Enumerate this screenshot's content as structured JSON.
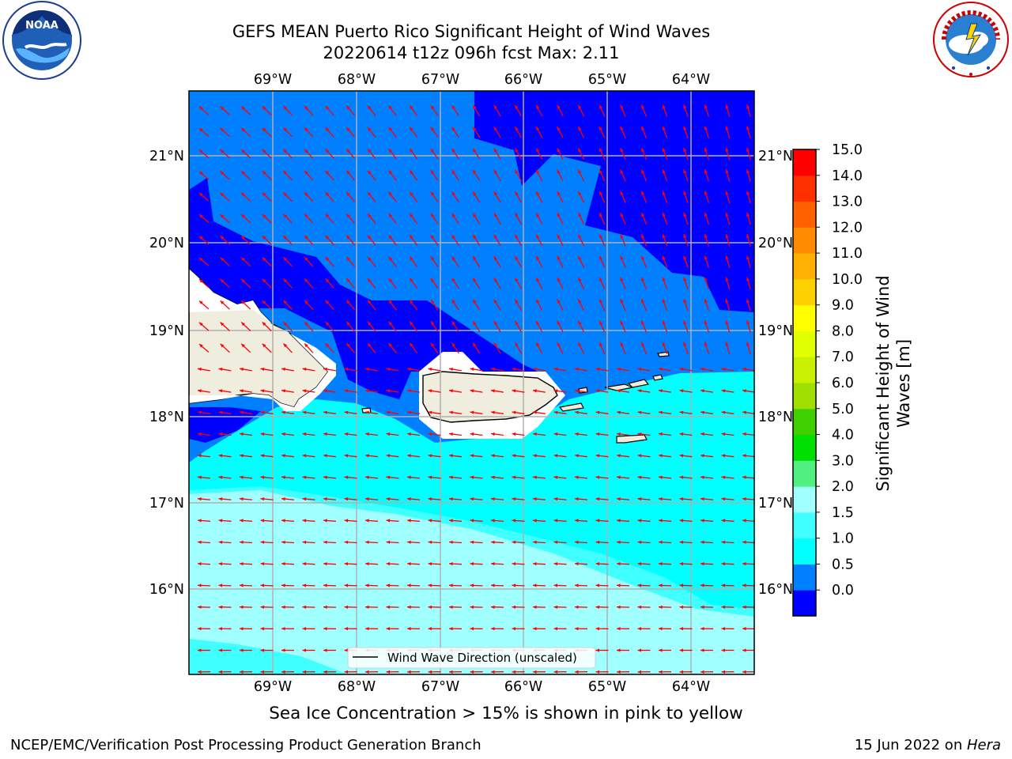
{
  "title": {
    "line1": "GEFS MEAN Puerto Rico Significant Height of Wind Waves",
    "line2": "20220614 t12z 096h fcst   Max: 2.11"
  },
  "map": {
    "lon_labels": [
      "69°W",
      "68°W",
      "67°W",
      "66°W",
      "65°W",
      "64°W"
    ],
    "lat_labels": [
      "21°N",
      "20°N",
      "19°N",
      "18°N",
      "17°N",
      "16°N"
    ],
    "legend_label": "Wind Wave Direction (unscaled)",
    "arrow_color": "#ff0000",
    "land_color": "#efedde",
    "extent": {
      "lon": [
        -70,
        -63.25
      ],
      "lat": [
        15,
        21.75
      ]
    }
  },
  "colorbar": {
    "title": "Significant Height of Wind Waves [m]",
    "ticks": [
      "15.0",
      "14.0",
      "13.0",
      "12.0",
      "11.0",
      "10.0",
      "9.0",
      "8.0",
      "7.0",
      "6.0",
      "5.0",
      "4.0",
      "3.0",
      "2.0",
      "1.5",
      "1.0",
      "0.5",
      "0.0"
    ],
    "colors": [
      "#0000ff",
      "#0080ff",
      "#00ffff",
      "#40ffff",
      "#a0ffff",
      "#50f080",
      "#00e000",
      "#40d000",
      "#a0e000",
      "#c8f000",
      "#e0ff00",
      "#ffff00",
      "#ffd000",
      "#ffb000",
      "#ff8c00",
      "#ff6000",
      "#ff3000",
      "#ff0000"
    ]
  },
  "subnote": "Sea Ice Concentration > 15% is shown in pink to yellow",
  "footer": {
    "left": "NCEP/EMC/Verification Post Processing Product Generation Branch",
    "date": "15 Jun 2022 on ",
    "host": "Hera"
  },
  "logos": {
    "left": "noaa-logo",
    "right": "nws-logo"
  }
}
